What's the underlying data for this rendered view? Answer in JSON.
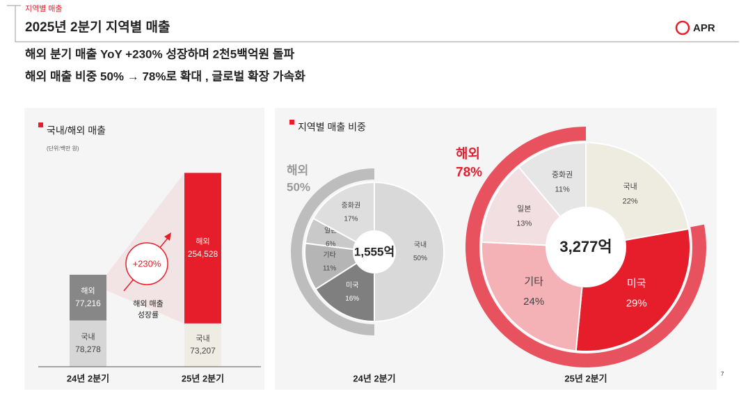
{
  "header": {
    "section": "지역별 매출",
    "title": "2025년 2분기 지역별 매출",
    "logo": "APR"
  },
  "headline": [
    "해외 분기 매출 YoY +230% 성장하며 2천5백억원 돌파",
    "해외 매출 비중 50% → 78%로 확대 , 글로벌 확장 가속화"
  ],
  "page_number": "7",
  "chart_data": [
    {
      "type": "bar",
      "stacked": true,
      "title": "국내/해외 매출",
      "unit": "(단위:백만 원)",
      "categories": [
        "24년 2분기",
        "25년 2분기"
      ],
      "series": [
        {
          "name": "국내",
          "colors": [
            "#d6d6d6",
            "#efece3"
          ],
          "values": [
            78278,
            73207
          ],
          "value_labels": [
            "78,278",
            "73,207"
          ]
        },
        {
          "name": "해외",
          "colors": [
            "#878787",
            "#e61e2b"
          ],
          "values": [
            77216,
            254528
          ],
          "value_labels": [
            "77,216",
            "254,528"
          ]
        }
      ],
      "annotation": {
        "label": "+230%",
        "text": [
          "해외 매출",
          "성장률"
        ]
      }
    },
    {
      "type": "pie",
      "title": "지역별 매출 비중",
      "category": "24년 2분기",
      "total": "1,555억",
      "categories": [
        "국내",
        "미국",
        "기타",
        "일본",
        "중화권"
      ],
      "values": [
        50,
        16,
        11,
        6,
        17
      ],
      "value_labels": [
        "50%",
        "16%",
        "11%",
        "6%",
        "17%"
      ],
      "colors": [
        "#d9d9d9",
        "#7f7f7f",
        "#b5b5b5",
        "#c9c9c9",
        "#dedede"
      ],
      "outer": {
        "name": "해외",
        "value": 50,
        "value_label": "50%",
        "color": "#bdbdbd"
      }
    },
    {
      "type": "pie",
      "category": "25년 2분기",
      "total": "3,277억",
      "categories": [
        "국내",
        "미국",
        "기타",
        "일본",
        "중화권"
      ],
      "values": [
        22,
        29,
        24,
        13,
        11
      ],
      "value_labels": [
        "22%",
        "29%",
        "24%",
        "13%",
        "11%"
      ],
      "colors": [
        "#eeebe1",
        "#e61e2b",
        "#f4b1b6",
        "#f2dfe2",
        "#e6e6e6"
      ],
      "outer": {
        "name": "해외",
        "value": 78,
        "value_label": "78%",
        "color": "#e8525e"
      }
    }
  ]
}
